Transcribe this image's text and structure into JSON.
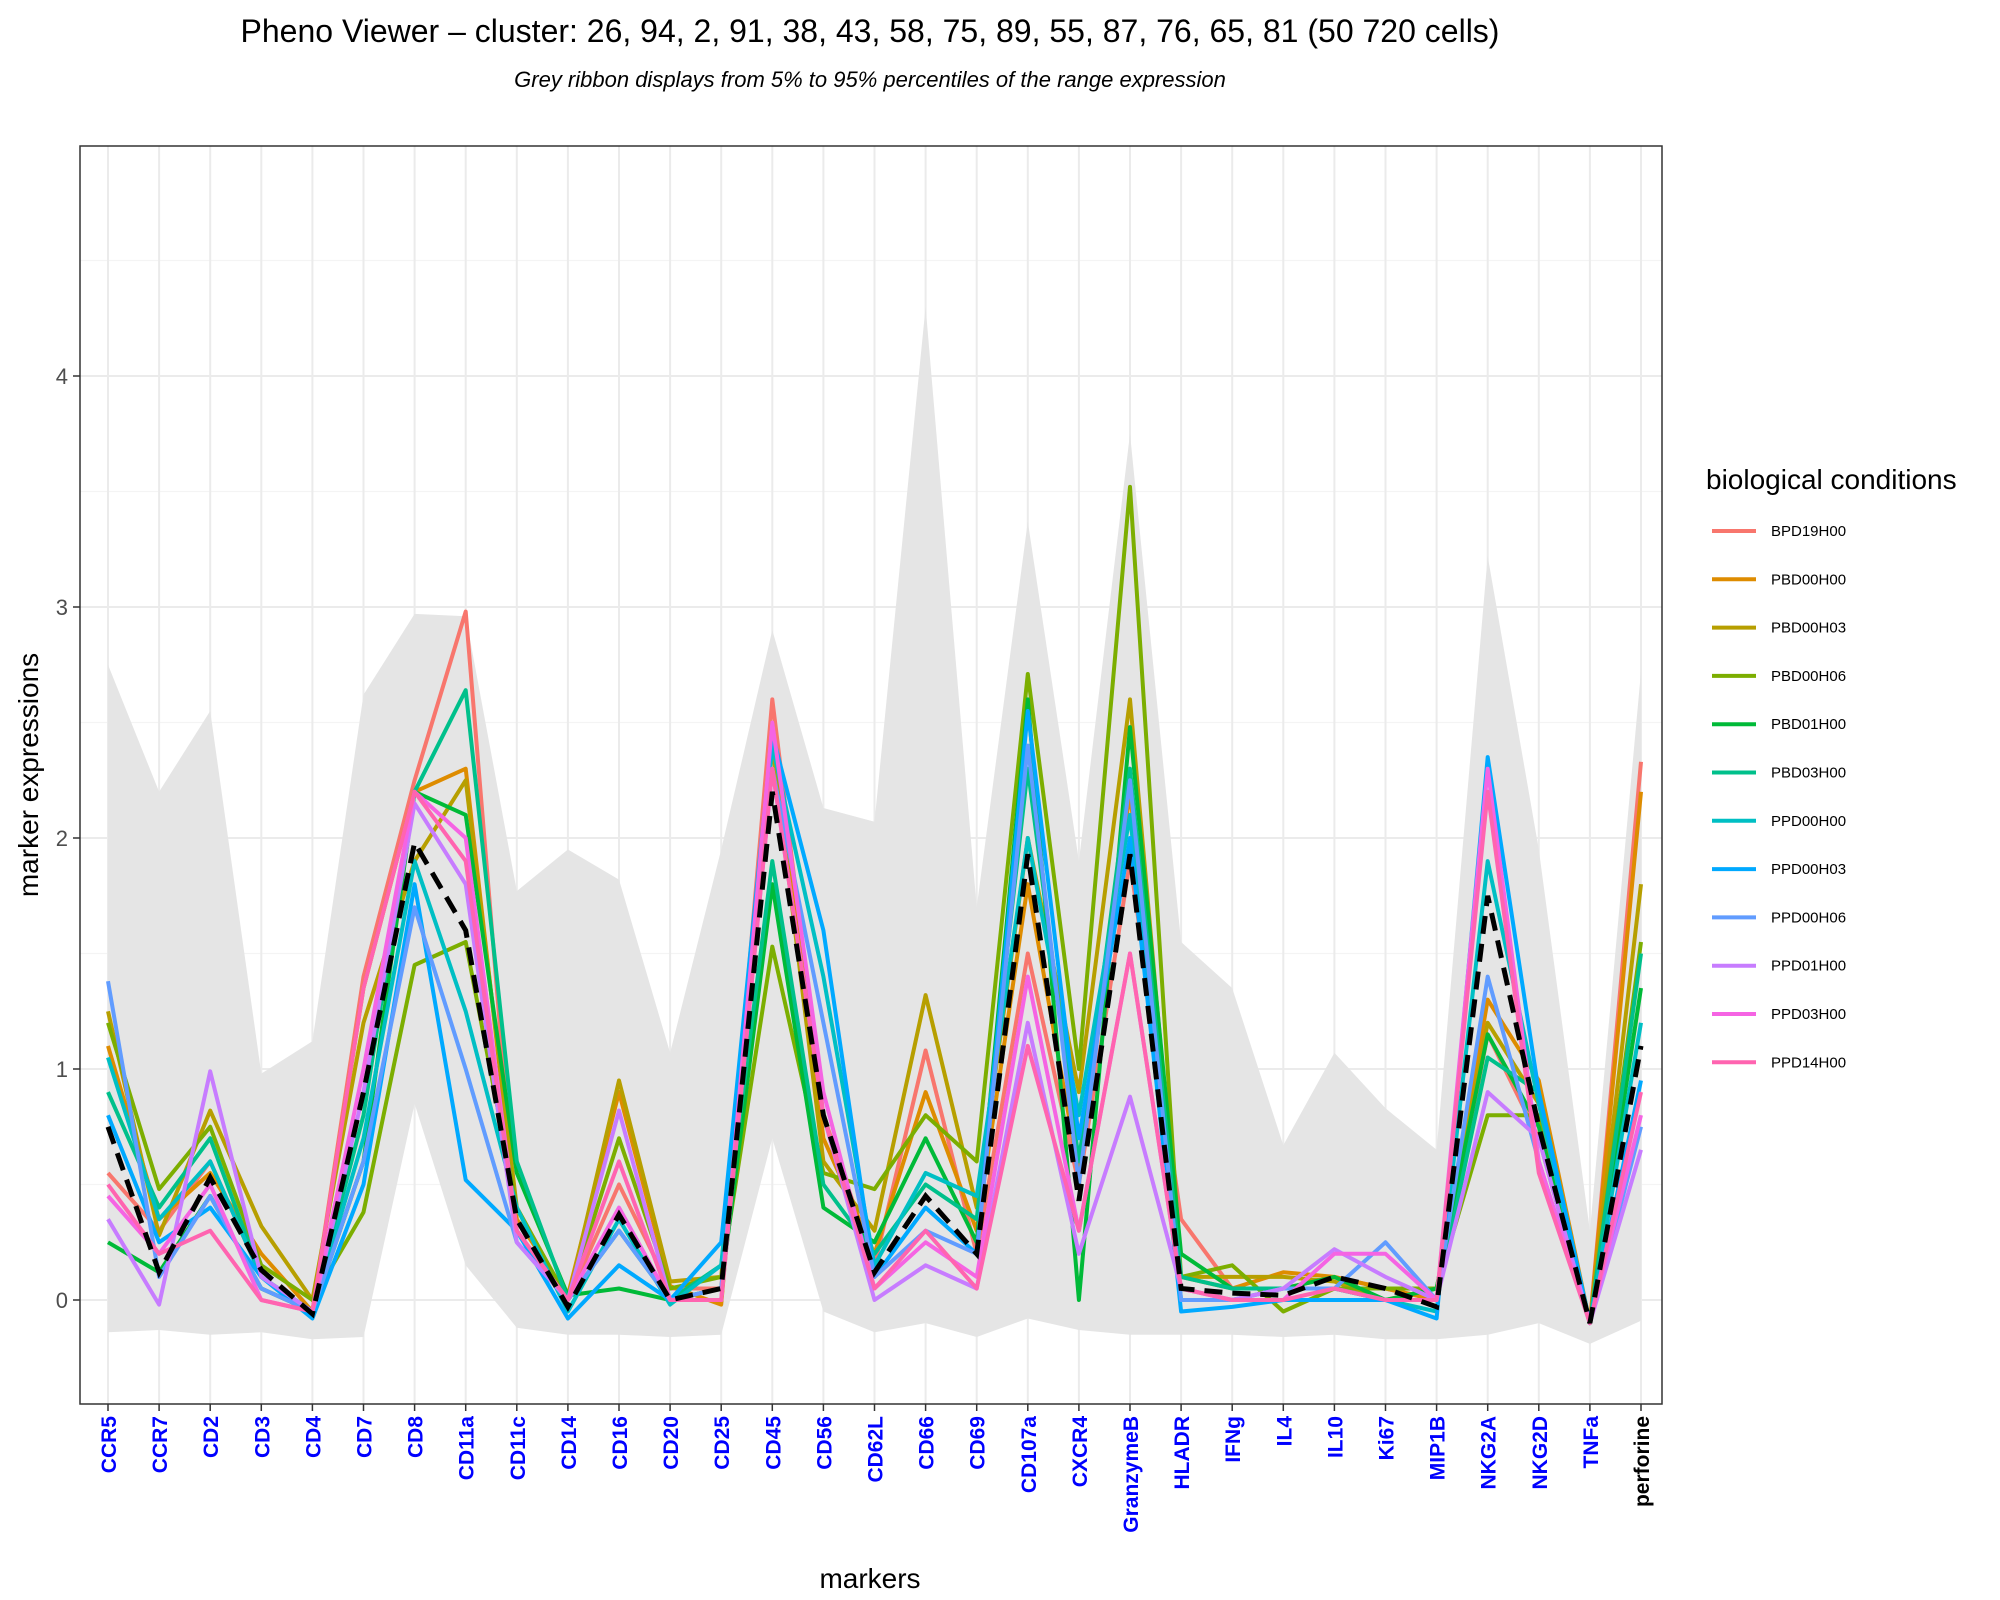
{
  "chart_data": {
    "type": "line",
    "title": "Pheno Viewer – cluster: 26, 94, 2, 91, 38, 43, 58, 75, 89, 55, 87, 76, 65, 81 (50 720 cells)",
    "subtitle": "Grey ribbon displays from 5% to 95% percentiles of the range expression",
    "xlabel": "markers",
    "ylabel": "marker expressions",
    "ylim": [
      -0.45,
      5.0
    ],
    "yticks": [
      0,
      1,
      2,
      3,
      4
    ],
    "grid": true,
    "categories": [
      "CCR5",
      "CCR7",
      "CD2",
      "CD3",
      "CD4",
      "CD7",
      "CD8",
      "CD11a",
      "CD11c",
      "CD14",
      "CD16",
      "CD20",
      "CD25",
      "CD45",
      "CD56",
      "CD62L",
      "CD66",
      "CD69",
      "CD107a",
      "CXCR4",
      "GranzymeB",
      "HLADR",
      "IFNg",
      "IL4",
      "IL10",
      "Ki67",
      "MIP1B",
      "NKG2A",
      "NKG2D",
      "TNFa",
      "perforine"
    ],
    "clustering_markers": [
      "CCR5",
      "CCR7",
      "CD2",
      "CD3",
      "CD4",
      "CD7",
      "CD8",
      "CD11a",
      "CD11c",
      "CD14",
      "CD16",
      "CD20",
      "CD25",
      "CD45",
      "CD56",
      "CD62L",
      "CD66",
      "CD69",
      "CD107a",
      "CXCR4",
      "GranzymeB",
      "HLADR",
      "IFNg",
      "IL4",
      "IL10",
      "Ki67",
      "MIP1B",
      "NKG2A",
      "NKG2D",
      "TNFa"
    ],
    "marker_colors": {
      "clustering": "#0000ff",
      "other": "#000000"
    },
    "ribbon": {
      "color": "#e5e5e5",
      "p95": [
        2.75,
        2.2,
        2.55,
        0.98,
        1.12,
        2.62,
        2.97,
        2.96,
        1.77,
        1.95,
        1.82,
        1.07,
        1.95,
        2.9,
        2.13,
        2.07,
        4.3,
        1.7,
        3.37,
        1.9,
        3.75,
        1.55,
        1.35,
        0.67,
        1.07,
        0.83,
        0.65,
        3.22,
        1.95,
        0.3,
        2.72
      ],
      "p05": [
        -0.14,
        -0.13,
        -0.15,
        -0.14,
        -0.17,
        -0.16,
        0.85,
        0.15,
        -0.12,
        -0.15,
        -0.15,
        -0.16,
        -0.15,
        0.7,
        -0.05,
        -0.14,
        -0.1,
        -0.16,
        -0.08,
        -0.13,
        -0.15,
        -0.15,
        -0.15,
        -0.16,
        -0.15,
        -0.17,
        -0.17,
        -0.15,
        -0.1,
        -0.19,
        -0.09
      ]
    },
    "legend_title": "biological conditions",
    "legend_position": "right",
    "series": [
      {
        "name": "BPD19H00",
        "color": "#f8766d",
        "values": [
          0.55,
          0.3,
          0.6,
          0.1,
          -0.05,
          1.4,
          2.25,
          2.98,
          0.3,
          0.0,
          0.5,
          0.05,
          0.05,
          2.6,
          0.8,
          0.15,
          1.08,
          0.2,
          1.5,
          0.5,
          1.9,
          0.35,
          0.05,
          0.05,
          0.1,
          0.05,
          0.0,
          1.15,
          0.7,
          -0.1,
          2.33
        ]
      },
      {
        "name": "PBD00H00",
        "color": "#de8c00",
        "values": [
          1.1,
          0.35,
          0.55,
          0.2,
          -0.05,
          1.35,
          2.2,
          2.3,
          0.35,
          0.02,
          0.9,
          0.06,
          -0.02,
          2.5,
          0.7,
          0.2,
          0.9,
          0.3,
          1.8,
          0.55,
          2.2,
          0.1,
          0.05,
          0.12,
          0.1,
          0.05,
          0.0,
          1.3,
          0.95,
          -0.1,
          2.2
        ]
      },
      {
        "name": "PBD00H03",
        "color": "#b79f00",
        "values": [
          1.25,
          0.28,
          0.82,
          0.32,
          0.0,
          1.2,
          1.9,
          2.25,
          0.4,
          0.0,
          0.95,
          0.08,
          0.1,
          2.4,
          0.6,
          0.3,
          1.32,
          0.4,
          2.0,
          0.9,
          2.6,
          0.1,
          0.1,
          0.1,
          0.08,
          0.0,
          0.05,
          1.2,
          0.85,
          -0.1,
          1.8
        ]
      },
      {
        "name": "PBD00H06",
        "color": "#7cae00",
        "values": [
          1.2,
          0.48,
          0.75,
          0.15,
          0.0,
          0.38,
          1.45,
          1.55,
          0.4,
          0.0,
          0.7,
          0.05,
          0.1,
          1.53,
          0.55,
          0.48,
          0.8,
          0.6,
          2.71,
          1.0,
          3.52,
          0.1,
          0.15,
          -0.05,
          0.05,
          0.05,
          0.05,
          0.8,
          0.8,
          -0.1,
          1.55
        ]
      },
      {
        "name": "PBD01H00",
        "color": "#00ba38",
        "values": [
          0.25,
          0.12,
          0.45,
          0.05,
          -0.05,
          0.6,
          2.2,
          2.1,
          0.55,
          0.02,
          0.05,
          0.0,
          0.05,
          1.8,
          0.4,
          0.25,
          0.7,
          0.25,
          2.6,
          0.0,
          2.48,
          0.2,
          0.05,
          0.05,
          0.1,
          0.0,
          0.05,
          1.15,
          0.75,
          -0.1,
          1.35
        ]
      },
      {
        "name": "PBD03H00",
        "color": "#00c08b",
        "values": [
          0.9,
          0.4,
          0.7,
          0.1,
          -0.05,
          0.8,
          2.2,
          2.64,
          0.6,
          0.0,
          0.3,
          0.0,
          0.15,
          1.9,
          0.5,
          0.2,
          0.5,
          0.35,
          2.3,
          0.6,
          2.3,
          0.1,
          0.05,
          0.05,
          0.05,
          0.0,
          0.0,
          1.05,
          0.9,
          -0.1,
          1.5
        ]
      },
      {
        "name": "PPD00H00",
        "color": "#00bfc4",
        "values": [
          1.05,
          0.35,
          0.6,
          0.1,
          -0.05,
          0.7,
          1.9,
          1.25,
          0.4,
          -0.05,
          0.35,
          -0.02,
          0.15,
          2.4,
          1.4,
          0.15,
          0.55,
          0.45,
          2.0,
          0.8,
          2.1,
          0.0,
          0.0,
          0.05,
          0.05,
          0.0,
          -0.05,
          1.9,
          0.85,
          -0.1,
          1.2
        ]
      },
      {
        "name": "PPD00H03",
        "color": "#00a9ff",
        "values": [
          0.8,
          0.25,
          0.4,
          0.1,
          -0.08,
          0.5,
          1.8,
          0.52,
          0.3,
          -0.08,
          0.15,
          0.0,
          0.25,
          2.45,
          1.6,
          0.1,
          0.4,
          0.2,
          2.55,
          0.7,
          2.0,
          -0.05,
          -0.03,
          0.0,
          0.0,
          0.0,
          -0.08,
          2.35,
          0.9,
          -0.1,
          0.95
        ]
      },
      {
        "name": "PPD00H06",
        "color": "#619cff",
        "values": [
          1.38,
          0.1,
          0.45,
          0.05,
          -0.05,
          0.6,
          1.7,
          1.0,
          0.25,
          0.0,
          0.3,
          0.0,
          0.05,
          2.3,
          1.2,
          0.1,
          0.3,
          0.2,
          2.4,
          0.5,
          2.25,
          0.0,
          0.0,
          0.05,
          0.05,
          0.25,
          0.0,
          1.4,
          0.6,
          -0.1,
          0.75
        ]
      },
      {
        "name": "PPD01H00",
        "color": "#c77cff",
        "values": [
          0.35,
          -0.02,
          0.99,
          0.1,
          -0.05,
          0.9,
          2.15,
          1.8,
          0.25,
          0.0,
          0.82,
          0.0,
          0.0,
          2.3,
          0.8,
          0.0,
          0.15,
          0.05,
          1.2,
          0.2,
          0.88,
          0.05,
          0.0,
          0.05,
          0.22,
          0.1,
          0.0,
          0.9,
          0.7,
          -0.1,
          0.65
        ]
      },
      {
        "name": "PPD03H00",
        "color": "#f564e3",
        "values": [
          0.45,
          0.2,
          0.5,
          0.0,
          -0.05,
          1.0,
          2.2,
          2.0,
          0.3,
          0.0,
          0.4,
          0.0,
          0.0,
          2.5,
          0.9,
          0.05,
          0.25,
          0.1,
          1.4,
          0.3,
          1.5,
          0.05,
          0.0,
          0.0,
          0.2,
          0.2,
          0.0,
          2.3,
          0.6,
          -0.1,
          0.8
        ]
      },
      {
        "name": "PPD14H00",
        "color": "#ff64b0",
        "values": [
          0.5,
          0.2,
          0.3,
          0.0,
          -0.05,
          1.35,
          2.2,
          1.9,
          0.3,
          0.0,
          0.6,
          0.0,
          0.0,
          2.3,
          0.8,
          0.05,
          0.3,
          0.05,
          1.1,
          0.3,
          1.5,
          0.05,
          0.0,
          0.0,
          0.05,
          0.0,
          0.0,
          2.2,
          0.55,
          -0.1,
          0.9
        ]
      }
    ],
    "mean_line": {
      "style": "dashed",
      "color": "#000000",
      "values": [
        0.75,
        0.12,
        0.53,
        0.13,
        -0.06,
        0.9,
        1.98,
        1.6,
        0.35,
        -0.03,
        0.37,
        0.0,
        0.05,
        2.2,
        0.8,
        0.12,
        0.45,
        0.2,
        1.93,
        0.43,
        1.93,
        0.05,
        0.03,
        0.02,
        0.1,
        0.05,
        -0.03,
        1.75,
        0.75,
        -0.1,
        1.1
      ]
    }
  }
}
